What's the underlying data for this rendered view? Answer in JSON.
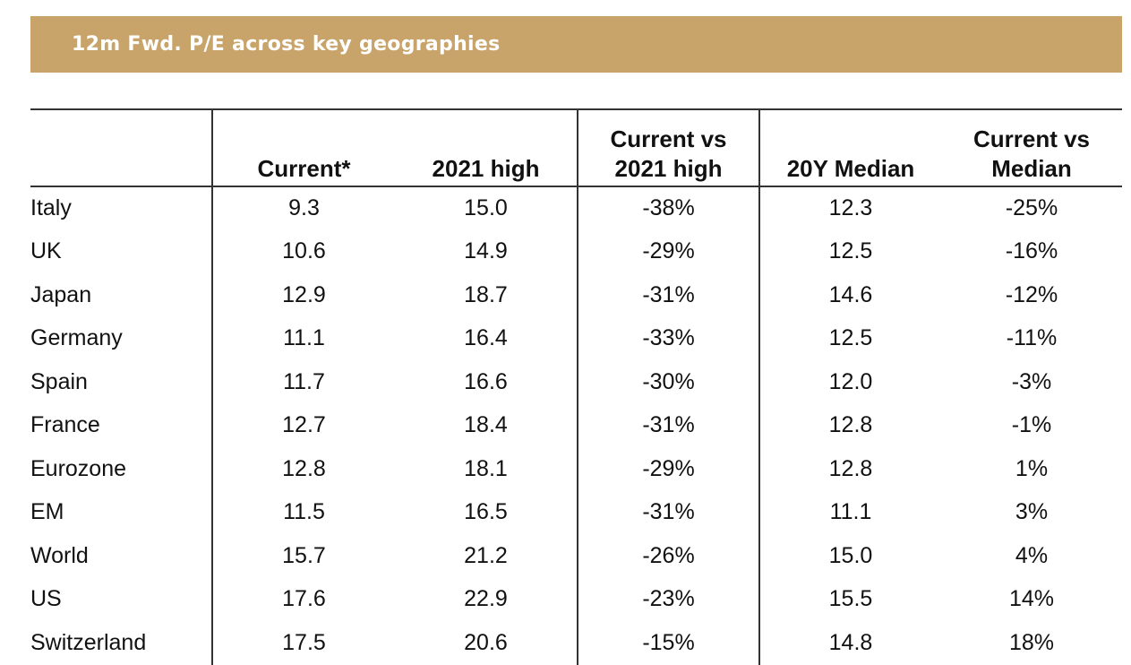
{
  "title": "12m Fwd. P/E across key geographies",
  "table": {
    "headers": [
      "",
      "Current*",
      "2021 high",
      "Current vs 2021 high",
      "20Y Median",
      "Current vs Median"
    ],
    "header_lines": {
      "col3": [
        "Current vs",
        "2021 high"
      ],
      "col5": [
        "Current vs",
        "Median"
      ]
    },
    "rows": [
      {
        "country": "Italy",
        "current": "9.3",
        "high_2021": "15.0",
        "vs_high": "-38%",
        "median_20y": "12.3",
        "vs_median": "-25%"
      },
      {
        "country": "UK",
        "current": "10.6",
        "high_2021": "14.9",
        "vs_high": "-29%",
        "median_20y": "12.5",
        "vs_median": "-16%"
      },
      {
        "country": "Japan",
        "current": "12.9",
        "high_2021": "18.7",
        "vs_high": "-31%",
        "median_20y": "14.6",
        "vs_median": "-12%"
      },
      {
        "country": "Germany",
        "current": "11.1",
        "high_2021": "16.4",
        "vs_high": "-33%",
        "median_20y": "12.5",
        "vs_median": "-11%"
      },
      {
        "country": "Spain",
        "current": "11.7",
        "high_2021": "16.6",
        "vs_high": "-30%",
        "median_20y": "12.0",
        "vs_median": "-3%"
      },
      {
        "country": "France",
        "current": "12.7",
        "high_2021": "18.4",
        "vs_high": "-31%",
        "median_20y": "12.8",
        "vs_median": "-1%"
      },
      {
        "country": "Eurozone",
        "current": "12.8",
        "high_2021": "18.1",
        "vs_high": "-29%",
        "median_20y": "12.8",
        "vs_median": "1%"
      },
      {
        "country": "EM",
        "current": "11.5",
        "high_2021": "16.5",
        "vs_high": "-31%",
        "median_20y": "11.1",
        "vs_median": "3%"
      },
      {
        "country": "World",
        "current": "15.7",
        "high_2021": "21.2",
        "vs_high": "-26%",
        "median_20y": "15.0",
        "vs_median": "4%"
      },
      {
        "country": "US",
        "current": "17.6",
        "high_2021": "22.9",
        "vs_high": "-23%",
        "median_20y": "15.5",
        "vs_median": "14%"
      },
      {
        "country": "Switzerland",
        "current": "17.5",
        "high_2021": "20.6",
        "vs_high": "-15%",
        "median_20y": "14.8",
        "vs_median": "18%"
      }
    ]
  },
  "colors": {
    "title_bar": "#c8a46a",
    "title_text": "#ffffff",
    "rules": "#333333"
  }
}
